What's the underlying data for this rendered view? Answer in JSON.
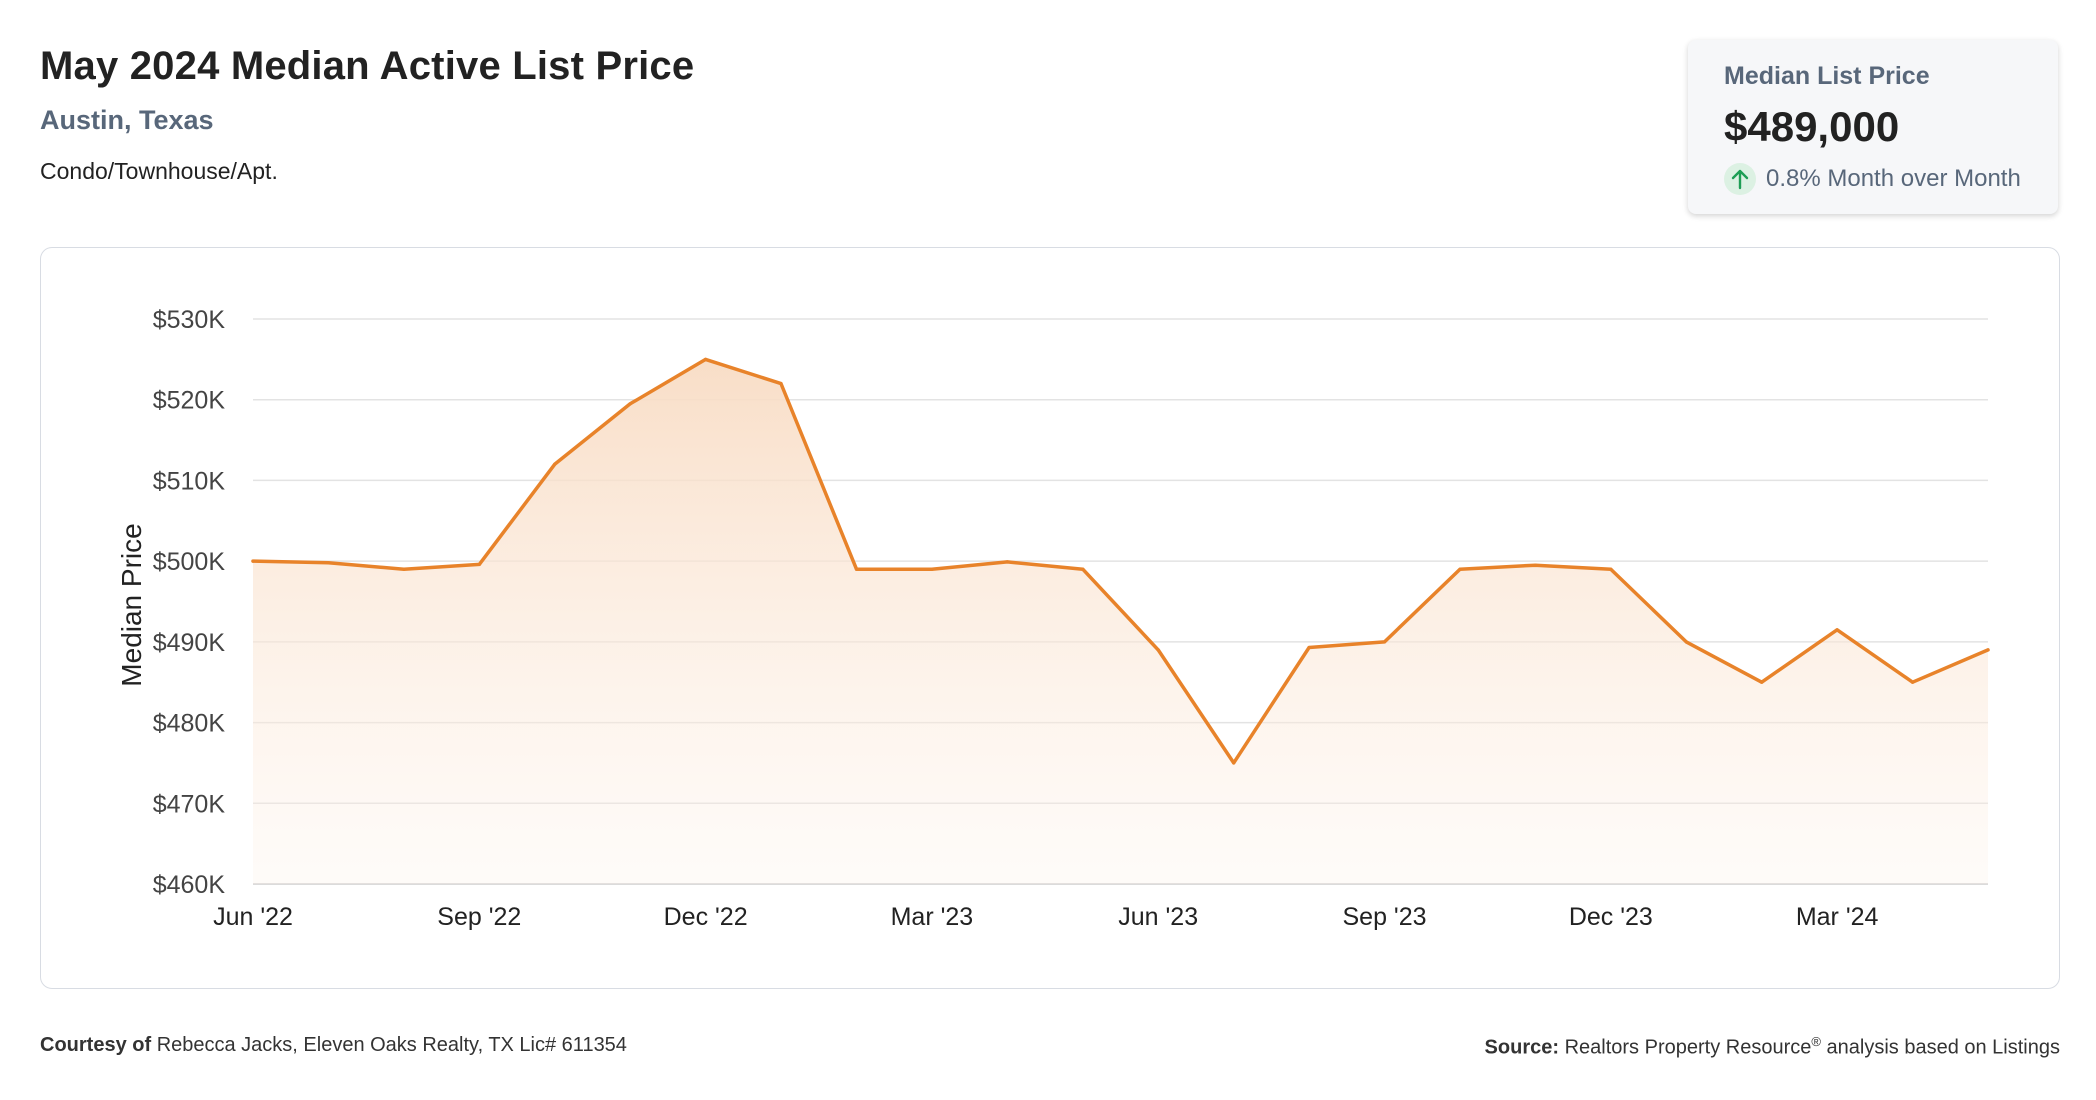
{
  "header": {
    "title": "May 2024 Median Active List Price",
    "location": "Austin, Texas",
    "property_type": "Condo/Townhouse/Apt."
  },
  "kpi": {
    "label": "Median List Price",
    "value": "$489,000",
    "change": "0.8% Month over Month"
  },
  "footer": {
    "courtesy_label": "Courtesy of",
    "courtesy_text": "Rebecca Jacks, Eleven Oaks Realty, TX Lic# 611354",
    "source_label": "Source:",
    "source_text_1": "Realtors Property Resource",
    "source_mark": "®",
    "source_text_2": "analysis based on Listings"
  },
  "colors": {
    "line": "#e8832a",
    "area_top": "#f8dcc4",
    "grid": "#e3e3e3",
    "up": "#1e9e55"
  },
  "chart_data": {
    "type": "area",
    "ylabel": "Median Price",
    "ylim": [
      460000,
      530000
    ],
    "yticks": [
      460000,
      470000,
      480000,
      490000,
      500000,
      510000,
      520000,
      530000
    ],
    "ytick_labels": [
      "$460K",
      "$470K",
      "$480K",
      "$490K",
      "$500K",
      "$510K",
      "$520K",
      "$530K"
    ],
    "x": [
      "2022-06",
      "2022-07",
      "2022-08",
      "2022-09",
      "2022-10",
      "2022-11",
      "2022-12",
      "2023-01",
      "2023-02",
      "2023-03",
      "2023-04",
      "2023-05",
      "2023-06",
      "2023-07",
      "2023-08",
      "2023-09",
      "2023-10",
      "2023-11",
      "2023-12",
      "2024-01",
      "2024-02",
      "2024-03",
      "2024-04",
      "2024-05"
    ],
    "xtick_labels": [
      "Jun '22",
      "Sep '22",
      "Dec '22",
      "Mar '23",
      "Jun '23",
      "Sep '23",
      "Dec '23",
      "Mar '24"
    ],
    "xtick_index": [
      0,
      3,
      6,
      9,
      12,
      15,
      18,
      21
    ],
    "values": [
      500000,
      499800,
      499000,
      499600,
      512000,
      519500,
      525000,
      522000,
      499000,
      499000,
      499900,
      499000,
      489000,
      475000,
      489300,
      490000,
      499000,
      499500,
      499000,
      490000,
      485000,
      491500,
      485000,
      489000
    ],
    "grid": true,
    "legend": false
  }
}
